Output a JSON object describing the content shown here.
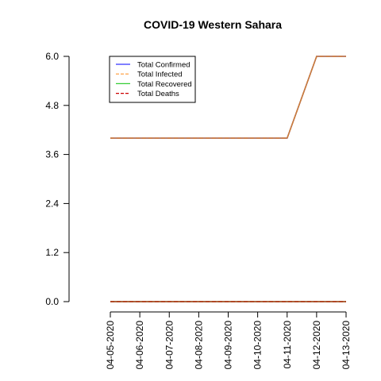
{
  "chart_data": {
    "type": "line",
    "title": "COVID-19 Western Sahara",
    "xlabel": "",
    "ylabel": "",
    "x": [
      "04-05-2020",
      "04-06-2020",
      "04-07-2020",
      "04-08-2020",
      "04-09-2020",
      "04-10-2020",
      "04-11-2020",
      "04-12-2020",
      "04-13-2020"
    ],
    "ylim": [
      0,
      6
    ],
    "yticks": [
      "0.0",
      "1.2",
      "2.4",
      "3.6",
      "4.8",
      "6.0"
    ],
    "grid": false,
    "legend_position": "top-left",
    "series": [
      {
        "name": "Total Confirmed",
        "color": "#3333ff",
        "dash": "solid",
        "values": [
          4,
          4,
          4,
          4,
          4,
          4,
          4,
          6,
          6
        ]
      },
      {
        "name": "Total Infected",
        "color": "#ff9933",
        "dash": "dashed",
        "values": [
          4,
          4,
          4,
          4,
          4,
          4,
          4,
          6,
          6
        ]
      },
      {
        "name": "Total Recovered",
        "color": "#33cc33",
        "dash": "solid",
        "values": [
          0,
          0,
          0,
          0,
          0,
          0,
          0,
          0,
          0
        ]
      },
      {
        "name": "Total Deaths",
        "color": "#cc0000",
        "dash": "dashed",
        "values": [
          0,
          0,
          0,
          0,
          0,
          0,
          0,
          0,
          0
        ]
      }
    ],
    "overlay_color": "#c97b3a"
  }
}
